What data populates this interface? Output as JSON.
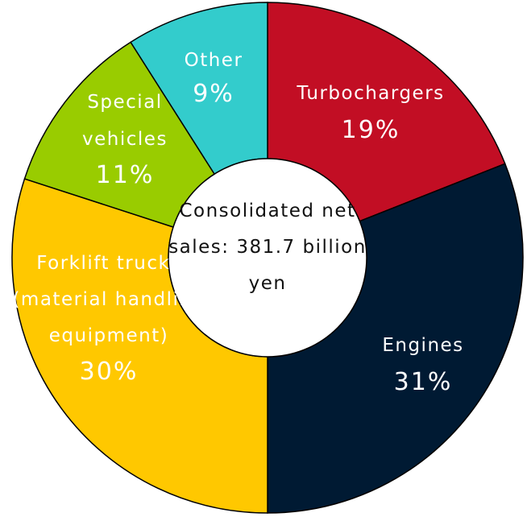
{
  "chart_data": {
    "type": "donut",
    "categories": [
      "Turbochargers",
      "Engines",
      "Forklift trucks (material handling equipment)",
      "Special vehicles",
      "Other"
    ],
    "values": [
      19,
      31,
      30,
      11,
      9
    ],
    "value_labels": [
      "19%",
      "31%",
      "30%",
      "11%",
      "9%"
    ],
    "colors": [
      "#c20e24",
      "#001a33",
      "#ffc800",
      "#99cc00",
      "#33cccc"
    ],
    "center_label": "Consolidated net sales: 381.7 billion yen"
  }
}
